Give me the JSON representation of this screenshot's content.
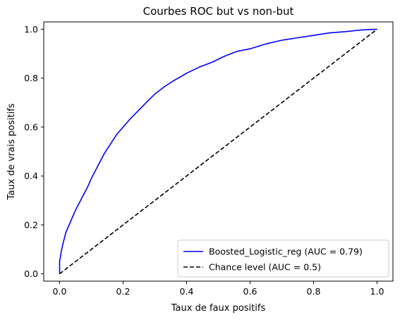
{
  "chart_data": {
    "type": "line",
    "title": "Courbes ROC but vs non-but",
    "xlabel": "Taux de faux positifs",
    "ylabel": "Taux de vrais positifs",
    "xlim": [
      -0.05,
      1.05
    ],
    "ylim": [
      -0.03,
      1.03
    ],
    "xticks": [
      0.0,
      0.2,
      0.4,
      0.6,
      0.8,
      1.0
    ],
    "yticks": [
      0.0,
      0.2,
      0.4,
      0.6,
      0.8,
      1.0
    ],
    "xtick_labels": [
      "0.0",
      "0.2",
      "0.4",
      "0.6",
      "0.8",
      "1.0"
    ],
    "ytick_labels": [
      "0.0",
      "0.2",
      "0.4",
      "0.6",
      "0.8",
      "1.0"
    ],
    "grid": false,
    "legend_position": "lower-right",
    "series": [
      {
        "name": "Boosted_Logistic_reg (AUC = 0.79)",
        "color": "#0000ff",
        "style": "solid",
        "x": [
          0.0,
          0.0,
          0.005,
          0.01,
          0.02,
          0.03,
          0.05,
          0.07,
          0.09,
          0.1,
          0.12,
          0.14,
          0.16,
          0.18,
          0.2,
          0.22,
          0.25,
          0.28,
          0.3,
          0.33,
          0.36,
          0.4,
          0.44,
          0.48,
          0.52,
          0.56,
          0.6,
          0.65,
          0.7,
          0.75,
          0.8,
          0.85,
          0.9,
          0.95,
          0.98,
          1.0
        ],
        "y": [
          0.0,
          0.05,
          0.09,
          0.12,
          0.17,
          0.2,
          0.26,
          0.31,
          0.36,
          0.39,
          0.44,
          0.49,
          0.53,
          0.57,
          0.6,
          0.63,
          0.67,
          0.71,
          0.735,
          0.765,
          0.79,
          0.82,
          0.845,
          0.865,
          0.89,
          0.91,
          0.92,
          0.94,
          0.955,
          0.965,
          0.975,
          0.985,
          0.99,
          0.997,
          0.999,
          1.0
        ]
      },
      {
        "name": "Chance level (AUC = 0.5)",
        "color": "#000000",
        "style": "dashed",
        "x": [
          0.0,
          1.0
        ],
        "y": [
          0.0,
          1.0
        ]
      }
    ]
  }
}
